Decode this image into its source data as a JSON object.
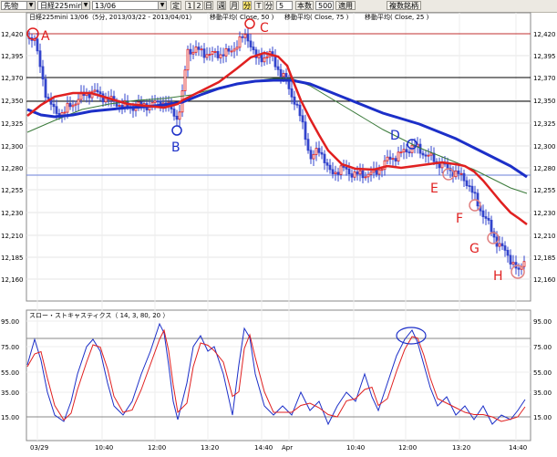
{
  "toolbar": {
    "market_select": "先物",
    "instrument_select": "日経225mini",
    "contract_select": "13/06",
    "fix_btn": "定",
    "period_buttons": [
      "1",
      "2",
      "日",
      "週",
      "月",
      "分",
      "T",
      "分"
    ],
    "active_period_index": 5,
    "interval_value": "5",
    "bars_label": "本数",
    "bars_value": "500",
    "apply_btn": "適用",
    "compare_btn": "複数銘柄"
  },
  "price_panel": {
    "legend": {
      "instrument": "日経225mini 13/06（5分, 2013/03/22 - 2013/04/01）",
      "ma1": "移動平均( Close, 50 )",
      "ma2": "移動平均( Close, 75 )",
      "ma3": "移動平均( Close, 25 )"
    },
    "y_ticks": [
      "12,420",
      "12,395",
      "12,370",
      "12,350",
      "12,325",
      "12,300",
      "12,280",
      "12,255",
      "12,230",
      "12,210",
      "12,185",
      "12,160"
    ],
    "markers": [
      "A",
      "B",
      "C",
      "D",
      "E",
      "F",
      "G",
      "H"
    ]
  },
  "oscillator_panel": {
    "title": "スロー・ストキャスティクス（ 14, 3, 80, 20 ）",
    "y_ticks": [
      "95.00",
      "75.00",
      "55.00",
      "35.00",
      "15.00"
    ]
  },
  "x_ticks": [
    "03/29",
    "10:40",
    "12:00",
    "13:20",
    "14:40",
    "Apr",
    "10:40",
    "12:00",
    "13:20",
    "14:40"
  ],
  "colors": {
    "ma_fast": "#e02020",
    "ma_mid": "#1c2fc8",
    "ma_slow": "#3a7a3a",
    "candle": "#3344cc",
    "marker_red": "#e02020",
    "marker_blue": "#1c2fc8"
  }
}
